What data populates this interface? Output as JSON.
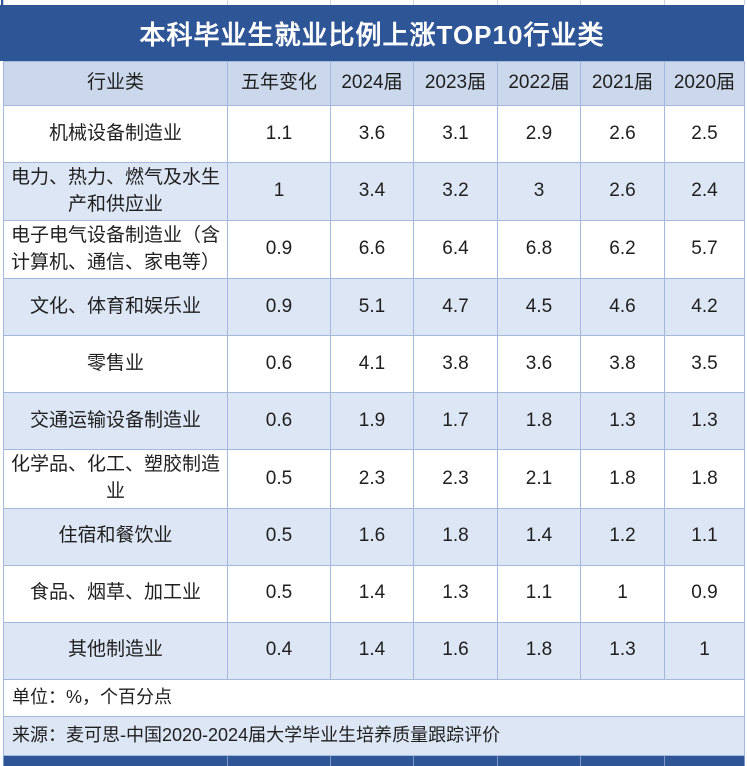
{
  "title": "本科毕业生就业比例上涨TOP10行业类",
  "unit_note": "单位：%，个百分点",
  "source_note": "来源：麦可思-中国2020-2024届大学毕业生培养质量跟踪评价",
  "colors": {
    "dark_blue": "#2E5596",
    "header_bg": "#CBD8EC",
    "alt_row_bg": "#DDE6F4",
    "border": "#A3B8DC",
    "text": "#1F1F1F",
    "title_text": "#FFFFFF"
  },
  "chart_data": {
    "type": "table",
    "title": "本科毕业生就业比例上涨TOP10行业类",
    "columns": [
      "行业类",
      "五年变化",
      "2024届",
      "2023届",
      "2022届",
      "2021届",
      "2020届"
    ],
    "rows": [
      {
        "label": "机械设备制造业",
        "values": [
          1.1,
          3.6,
          3.1,
          2.9,
          2.6,
          2.5
        ]
      },
      {
        "label": "电力、热力、燃气及水生产和供应业",
        "values": [
          1,
          3.4,
          3.2,
          3,
          2.6,
          2.4
        ]
      },
      {
        "label": "电子电气设备制造业（含计算机、通信、家电等）",
        "values": [
          0.9,
          6.6,
          6.4,
          6.8,
          6.2,
          5.7
        ]
      },
      {
        "label": "文化、体育和娱乐业",
        "values": [
          0.9,
          5.1,
          4.7,
          4.5,
          4.6,
          4.2
        ]
      },
      {
        "label": "零售业",
        "values": [
          0.6,
          4.1,
          3.8,
          3.6,
          3.8,
          3.5
        ]
      },
      {
        "label": "交通运输设备制造业",
        "values": [
          0.6,
          1.9,
          1.7,
          1.8,
          1.3,
          1.3
        ]
      },
      {
        "label": "化学品、化工、塑胶制造业",
        "values": [
          0.5,
          2.3,
          2.3,
          2.1,
          1.8,
          1.8
        ]
      },
      {
        "label": "住宿和餐饮业",
        "values": [
          0.5,
          1.6,
          1.8,
          1.4,
          1.2,
          1.1
        ]
      },
      {
        "label": "食品、烟草、加工业",
        "values": [
          0.5,
          1.4,
          1.3,
          1.1,
          1,
          0.9
        ]
      },
      {
        "label": "其他制造业",
        "values": [
          0.4,
          1.4,
          1.6,
          1.8,
          1.3,
          1
        ]
      }
    ],
    "unit": "%，个百分点",
    "source": "麦可思-中国2020-2024届大学毕业生培养质量跟踪评价"
  }
}
